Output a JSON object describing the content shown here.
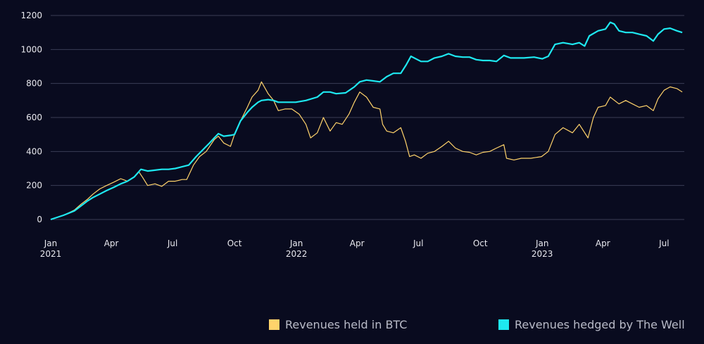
{
  "chart_data": {
    "type": "line",
    "title": "",
    "xlabel": "",
    "ylabel": "",
    "ylim": [
      0,
      1200
    ],
    "yticks": [
      0,
      200,
      400,
      600,
      800,
      1000,
      1200
    ],
    "xlim": [
      "2021-01-01",
      "2023-07-31"
    ],
    "xticks": [
      {
        "date": "2021-01-01",
        "label": "Jan",
        "year": "2021"
      },
      {
        "date": "2021-04-01",
        "label": "Apr",
        "year": ""
      },
      {
        "date": "2021-07-01",
        "label": "Jul",
        "year": ""
      },
      {
        "date": "2021-10-01",
        "label": "Oct",
        "year": ""
      },
      {
        "date": "2022-01-01",
        "label": "Jan",
        "year": "2022"
      },
      {
        "date": "2022-04-01",
        "label": "Apr",
        "year": ""
      },
      {
        "date": "2022-07-01",
        "label": "Jul",
        "year": ""
      },
      {
        "date": "2022-10-01",
        "label": "Oct",
        "year": ""
      },
      {
        "date": "2023-01-01",
        "label": "Jan",
        "year": "2023"
      },
      {
        "date": "2023-04-01",
        "label": "Apr",
        "year": ""
      },
      {
        "date": "2023-07-01",
        "label": "Jul",
        "year": ""
      }
    ],
    "grid": "horizontal",
    "legend_position": "bottom-right",
    "series": [
      {
        "name": "Revenues held in BTC",
        "color": "#ffd36b",
        "points": [
          [
            "2021-01-01",
            0
          ],
          [
            "2021-01-20",
            25
          ],
          [
            "2021-02-05",
            55
          ],
          [
            "2021-02-15",
            90
          ],
          [
            "2021-02-25",
            120
          ],
          [
            "2021-03-05",
            150
          ],
          [
            "2021-03-15",
            180
          ],
          [
            "2021-03-25",
            200
          ],
          [
            "2021-04-05",
            220
          ],
          [
            "2021-04-15",
            240
          ],
          [
            "2021-04-25",
            225
          ],
          [
            "2021-05-05",
            250
          ],
          [
            "2021-05-12",
            280
          ],
          [
            "2021-05-18",
            245
          ],
          [
            "2021-05-25",
            200
          ],
          [
            "2021-06-05",
            210
          ],
          [
            "2021-06-15",
            195
          ],
          [
            "2021-06-25",
            225
          ],
          [
            "2021-07-05",
            225
          ],
          [
            "2021-07-15",
            235
          ],
          [
            "2021-07-22",
            235
          ],
          [
            "2021-08-01",
            320
          ],
          [
            "2021-08-10",
            370
          ],
          [
            "2021-08-20",
            400
          ],
          [
            "2021-09-01",
            470
          ],
          [
            "2021-09-07",
            490
          ],
          [
            "2021-09-15",
            450
          ],
          [
            "2021-09-25",
            430
          ],
          [
            "2021-10-01",
            500
          ],
          [
            "2021-10-10",
            580
          ],
          [
            "2021-10-20",
            660
          ],
          [
            "2021-10-27",
            720
          ],
          [
            "2021-11-05",
            760
          ],
          [
            "2021-11-10",
            810
          ],
          [
            "2021-11-20",
            740
          ],
          [
            "2021-11-28",
            700
          ],
          [
            "2021-12-05",
            640
          ],
          [
            "2021-12-15",
            650
          ],
          [
            "2021-12-25",
            650
          ],
          [
            "2022-01-05",
            620
          ],
          [
            "2022-01-15",
            560
          ],
          [
            "2022-01-22",
            480
          ],
          [
            "2022-02-01",
            510
          ],
          [
            "2022-02-10",
            600
          ],
          [
            "2022-02-20",
            520
          ],
          [
            "2022-03-01",
            570
          ],
          [
            "2022-03-10",
            560
          ],
          [
            "2022-03-20",
            620
          ],
          [
            "2022-03-28",
            690
          ],
          [
            "2022-04-05",
            750
          ],
          [
            "2022-04-15",
            720
          ],
          [
            "2022-04-25",
            660
          ],
          [
            "2022-05-05",
            650
          ],
          [
            "2022-05-09",
            560
          ],
          [
            "2022-05-15",
            520
          ],
          [
            "2022-05-25",
            510
          ],
          [
            "2022-06-05",
            540
          ],
          [
            "2022-06-12",
            460
          ],
          [
            "2022-06-18",
            370
          ],
          [
            "2022-06-25",
            380
          ],
          [
            "2022-07-05",
            360
          ],
          [
            "2022-07-15",
            390
          ],
          [
            "2022-07-25",
            400
          ],
          [
            "2022-08-05",
            430
          ],
          [
            "2022-08-15",
            460
          ],
          [
            "2022-08-25",
            420
          ],
          [
            "2022-09-05",
            400
          ],
          [
            "2022-09-15",
            395
          ],
          [
            "2022-09-25",
            380
          ],
          [
            "2022-10-05",
            395
          ],
          [
            "2022-10-15",
            400
          ],
          [
            "2022-10-25",
            420
          ],
          [
            "2022-11-05",
            440
          ],
          [
            "2022-11-09",
            360
          ],
          [
            "2022-11-20",
            350
          ],
          [
            "2022-12-01",
            360
          ],
          [
            "2022-12-15",
            360
          ],
          [
            "2022-12-31",
            370
          ],
          [
            "2023-01-10",
            400
          ],
          [
            "2023-01-20",
            500
          ],
          [
            "2023-02-01",
            540
          ],
          [
            "2023-02-15",
            510
          ],
          [
            "2023-02-25",
            560
          ],
          [
            "2023-03-10",
            480
          ],
          [
            "2023-03-18",
            600
          ],
          [
            "2023-03-25",
            660
          ],
          [
            "2023-04-05",
            670
          ],
          [
            "2023-04-12",
            720
          ],
          [
            "2023-04-25",
            680
          ],
          [
            "2023-05-05",
            700
          ],
          [
            "2023-05-15",
            680
          ],
          [
            "2023-05-25",
            660
          ],
          [
            "2023-06-05",
            670
          ],
          [
            "2023-06-15",
            640
          ],
          [
            "2023-06-22",
            710
          ],
          [
            "2023-07-01",
            760
          ],
          [
            "2023-07-10",
            780
          ],
          [
            "2023-07-20",
            770
          ],
          [
            "2023-07-28",
            750
          ]
        ]
      },
      {
        "name": "Revenues hedged by The Well",
        "color": "#1ee8f0",
        "points": [
          [
            "2021-01-01",
            0
          ],
          [
            "2021-01-20",
            25
          ],
          [
            "2021-02-05",
            50
          ],
          [
            "2021-02-15",
            80
          ],
          [
            "2021-02-25",
            110
          ],
          [
            "2021-03-05",
            130
          ],
          [
            "2021-03-15",
            150
          ],
          [
            "2021-03-25",
            170
          ],
          [
            "2021-04-05",
            190
          ],
          [
            "2021-04-15",
            210
          ],
          [
            "2021-04-25",
            225
          ],
          [
            "2021-05-05",
            250
          ],
          [
            "2021-05-15",
            295
          ],
          [
            "2021-05-25",
            285
          ],
          [
            "2021-06-05",
            290
          ],
          [
            "2021-06-15",
            295
          ],
          [
            "2021-06-25",
            295
          ],
          [
            "2021-07-05",
            300
          ],
          [
            "2021-07-15",
            310
          ],
          [
            "2021-07-25",
            320
          ],
          [
            "2021-08-05",
            370
          ],
          [
            "2021-08-15",
            410
          ],
          [
            "2021-08-25",
            450
          ],
          [
            "2021-09-01",
            480
          ],
          [
            "2021-09-07",
            505
          ],
          [
            "2021-09-15",
            490
          ],
          [
            "2021-09-25",
            495
          ],
          [
            "2021-10-01",
            500
          ],
          [
            "2021-10-10",
            580
          ],
          [
            "2021-10-20",
            630
          ],
          [
            "2021-10-27",
            660
          ],
          [
            "2021-11-05",
            690
          ],
          [
            "2021-11-10",
            700
          ],
          [
            "2021-11-20",
            705
          ],
          [
            "2021-11-28",
            700
          ],
          [
            "2021-12-05",
            690
          ],
          [
            "2021-12-15",
            690
          ],
          [
            "2021-12-31",
            690
          ],
          [
            "2022-01-15",
            700
          ],
          [
            "2022-02-01",
            720
          ],
          [
            "2022-02-10",
            750
          ],
          [
            "2022-02-20",
            750
          ],
          [
            "2022-03-01",
            740
          ],
          [
            "2022-03-15",
            745
          ],
          [
            "2022-03-28",
            780
          ],
          [
            "2022-04-05",
            810
          ],
          [
            "2022-04-15",
            820
          ],
          [
            "2022-04-25",
            815
          ],
          [
            "2022-05-05",
            810
          ],
          [
            "2022-05-15",
            840
          ],
          [
            "2022-05-25",
            860
          ],
          [
            "2022-06-05",
            860
          ],
          [
            "2022-06-13",
            910
          ],
          [
            "2022-06-20",
            960
          ],
          [
            "2022-07-05",
            930
          ],
          [
            "2022-07-15",
            930
          ],
          [
            "2022-07-25",
            950
          ],
          [
            "2022-08-05",
            960
          ],
          [
            "2022-08-15",
            975
          ],
          [
            "2022-08-25",
            960
          ],
          [
            "2022-09-05",
            955
          ],
          [
            "2022-09-15",
            955
          ],
          [
            "2022-09-25",
            940
          ],
          [
            "2022-10-05",
            935
          ],
          [
            "2022-10-15",
            935
          ],
          [
            "2022-10-25",
            930
          ],
          [
            "2022-11-05",
            965
          ],
          [
            "2022-11-15",
            950
          ],
          [
            "2022-11-25",
            950
          ],
          [
            "2022-12-05",
            950
          ],
          [
            "2022-12-20",
            955
          ],
          [
            "2023-01-01",
            945
          ],
          [
            "2023-01-10",
            960
          ],
          [
            "2023-01-20",
            1030
          ],
          [
            "2023-02-01",
            1040
          ],
          [
            "2023-02-15",
            1030
          ],
          [
            "2023-02-25",
            1040
          ],
          [
            "2023-03-05",
            1020
          ],
          [
            "2023-03-12",
            1080
          ],
          [
            "2023-03-25",
            1110
          ],
          [
            "2023-04-05",
            1120
          ],
          [
            "2023-04-12",
            1160
          ],
          [
            "2023-04-18",
            1150
          ],
          [
            "2023-04-25",
            1110
          ],
          [
            "2023-05-05",
            1100
          ],
          [
            "2023-05-15",
            1100
          ],
          [
            "2023-05-25",
            1090
          ],
          [
            "2023-06-05",
            1080
          ],
          [
            "2023-06-15",
            1050
          ],
          [
            "2023-06-22",
            1090
          ],
          [
            "2023-07-01",
            1120
          ],
          [
            "2023-07-10",
            1125
          ],
          [
            "2023-07-20",
            1110
          ],
          [
            "2023-07-28",
            1100
          ]
        ]
      }
    ]
  }
}
